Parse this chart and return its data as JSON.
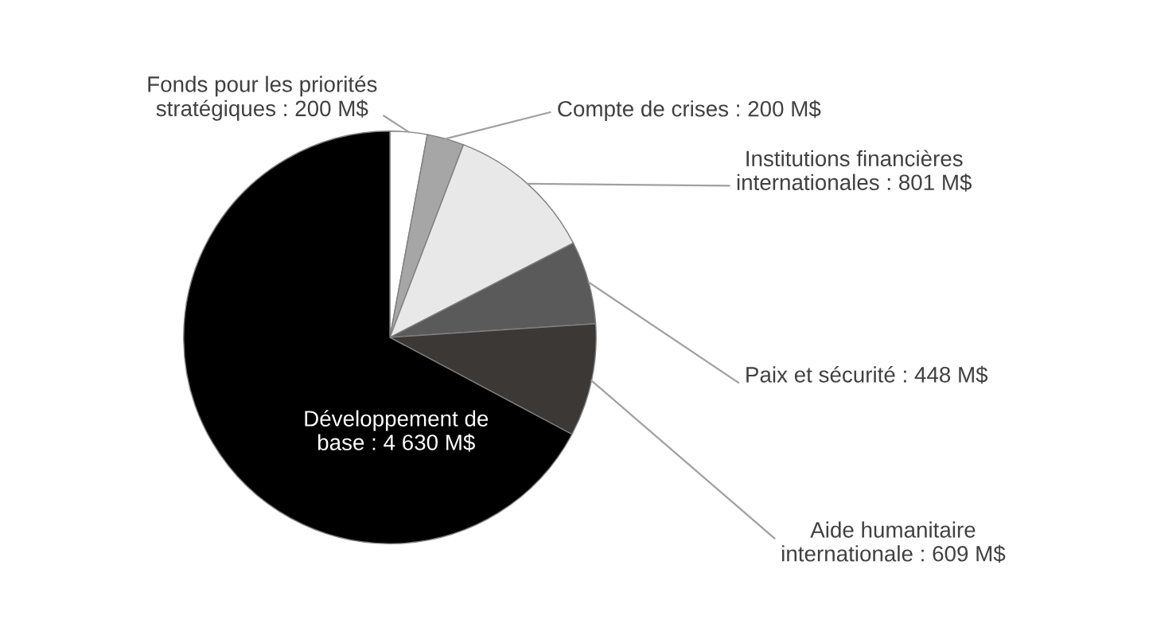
{
  "chart_data": {
    "type": "pie",
    "categories": [
      "Fonds pour les priorités\nstratégiques : 200 M$",
      "Compte de crises : 200 M$",
      "Institutions financières\ninternationales : 801 M$",
      "Paix et sécurité : 448 M$",
      "Aide humanitaire\ninternationale : 609 M$",
      "Développement de\nbase : 4 630 M$"
    ],
    "values": [
      200,
      200,
      801,
      448,
      609,
      4630
    ],
    "colors": [
      "#ffffff",
      "#a6a6a6",
      "#e8e8e8",
      "#5a5a5a",
      "#3b3835",
      "#000000"
    ]
  }
}
